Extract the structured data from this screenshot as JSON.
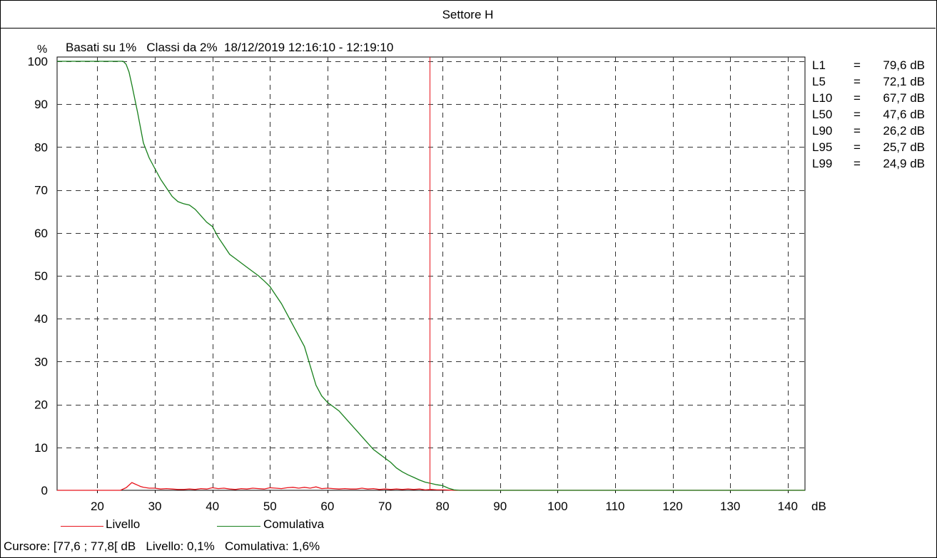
{
  "chart_data": {
    "type": "line",
    "title": "Settore H",
    "header": "Basati su 1%   Classi da 2%  18/12/2019 12:16:10 - 12:19:10",
    "ylabel": "%",
    "xlabel": "dB",
    "xlim": [
      13,
      143
    ],
    "ylim": [
      0,
      101
    ],
    "x_ticks": [
      20,
      30,
      40,
      50,
      60,
      70,
      80,
      90,
      100,
      110,
      120,
      130,
      140
    ],
    "y_ticks": [
      0,
      10,
      20,
      30,
      40,
      50,
      60,
      70,
      80,
      90,
      100
    ],
    "grid": true,
    "cursor_db": 77.7,
    "series": [
      {
        "name": "Livello",
        "color": "#e8141c",
        "x": [
          13,
          24,
          25,
          25.5,
          26,
          26.5,
          27,
          27.5,
          28,
          29,
          30,
          31,
          32,
          33,
          34,
          35,
          36,
          37,
          38,
          39,
          40,
          41,
          42,
          43,
          44,
          45,
          46,
          47,
          48,
          49,
          50,
          51,
          52,
          53,
          54,
          55,
          56,
          57,
          58,
          59,
          60,
          61,
          62,
          63,
          64,
          65,
          66,
          67,
          68,
          69,
          70,
          71,
          72,
          73,
          74,
          75,
          76,
          77,
          78,
          79,
          80,
          81,
          82,
          143
        ],
        "y": [
          0,
          0,
          0.6,
          1.2,
          1.8,
          1.5,
          1.2,
          0.9,
          0.7,
          0.5,
          0.5,
          0.3,
          0.4,
          0.3,
          0.2,
          0.2,
          0.3,
          0.2,
          0.4,
          0.3,
          0.6,
          0.4,
          0.5,
          0.3,
          0.2,
          0.4,
          0.3,
          0.5,
          0.4,
          0.3,
          0.6,
          0.5,
          0.4,
          0.6,
          0.7,
          0.5,
          0.7,
          0.5,
          0.8,
          0.4,
          0.5,
          0.4,
          0.3,
          0.4,
          0.3,
          0.3,
          0.5,
          0.3,
          0.4,
          0.2,
          0.3,
          0.2,
          0.3,
          0.2,
          0.3,
          0.2,
          0.3,
          0.1,
          0.2,
          0.1,
          0.1,
          0.05,
          0,
          0
        ]
      },
      {
        "name": "Comulativa",
        "color": "#18801c",
        "x": [
          13,
          24,
          24.5,
          25,
          25.5,
          26,
          27,
          28,
          29,
          30,
          31,
          32,
          33,
          34,
          35,
          36,
          37,
          38,
          39,
          40,
          41,
          42,
          43,
          44,
          45,
          46,
          47,
          48,
          49,
          50,
          51,
          52,
          53,
          54,
          55,
          56,
          57,
          58,
          59,
          60,
          61,
          62,
          63,
          64,
          65,
          66,
          67,
          68,
          69,
          70,
          71,
          72,
          73,
          74,
          75,
          76,
          77,
          78,
          79,
          80,
          81,
          82,
          83,
          143
        ],
        "y": [
          100,
          100,
          100,
          99.3,
          97.5,
          94.5,
          88,
          81,
          77.5,
          75,
          72.5,
          70.5,
          68.5,
          67.3,
          66.8,
          66.5,
          65.5,
          64,
          62.5,
          61.5,
          59,
          57,
          55,
          54,
          53,
          52,
          51,
          50,
          48.8,
          47.5,
          45.5,
          43.5,
          41,
          38.5,
          36,
          33.5,
          29,
          24.5,
          22,
          20.5,
          19.5,
          18.5,
          17,
          15.5,
          14,
          12.5,
          11,
          9.5,
          8.5,
          7.5,
          6.5,
          5.2,
          4.3,
          3.6,
          3,
          2.4,
          1.9,
          1.6,
          1.3,
          1.1,
          0.5,
          0.1,
          0,
          0
        ]
      }
    ],
    "stats": [
      {
        "name": "L1",
        "eq": "=",
        "value": "79,6 dB"
      },
      {
        "name": "L5",
        "eq": "=",
        "value": "72,1 dB"
      },
      {
        "name": "L10",
        "eq": "=",
        "value": "67,7 dB"
      },
      {
        "name": "L50",
        "eq": "=",
        "value": "47,6 dB"
      },
      {
        "name": "L90",
        "eq": "=",
        "value": "26,2 dB"
      },
      {
        "name": "L95",
        "eq": "=",
        "value": "25,7 dB"
      },
      {
        "name": "L99",
        "eq": "=",
        "value": "24,9 dB"
      }
    ],
    "cursor_readout": "Cursore: [77,6 ; 77,8[ dB   Livello: 0,1%   Comulativa: 1,6%"
  },
  "colors": {
    "livello": "#e8141c",
    "comulativa": "#18801c",
    "cursor": "#e8141c",
    "grid": "#333333"
  }
}
